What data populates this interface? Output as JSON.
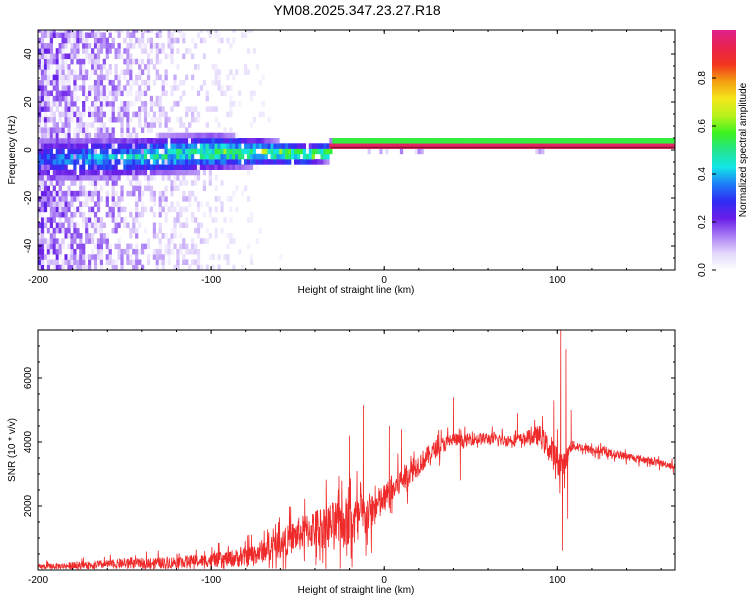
{
  "title": "YM08.2025.347.23.27.R18",
  "chart_data": [
    {
      "type": "heatmap",
      "name": "spectrogram",
      "xlabel": "Height of straight line (km)",
      "ylabel": "Frequency (Hz)",
      "xlim": [
        -200,
        168
      ],
      "ylim": [
        -50,
        50
      ],
      "xticks": [
        -200,
        -100,
        0,
        100
      ],
      "yticks": [
        -40,
        -20,
        0,
        20,
        40
      ],
      "colorbar": {
        "label": "Normalized spectral amplitude",
        "range": [
          0,
          1
        ],
        "ticks": [
          0.0,
          0.2,
          0.4,
          0.6,
          0.8
        ],
        "colors": [
          "#ffffff",
          "#e3d6fb",
          "#a97cf4",
          "#6a1ee8",
          "#2f2cf4",
          "#1f7cf8",
          "#13e6e8",
          "#22e58a",
          "#3cf21f",
          "#b8f21a",
          "#f4e61a",
          "#f49f12",
          "#f2331e",
          "#e8234f",
          "#e0208d"
        ]
      },
      "signal_band": {
        "freq_center": [
          [
            -200,
            -5
          ],
          [
            -150,
            -4
          ],
          [
            -100,
            -2
          ],
          [
            -70,
            -2
          ],
          [
            -45,
            -3
          ],
          [
            -33,
            -2
          ],
          [
            -31,
            1
          ],
          [
            0,
            1
          ],
          [
            50,
            1
          ],
          [
            168,
            1
          ]
        ],
        "half_width": [
          [
            -200,
            9
          ],
          [
            -100,
            8
          ],
          [
            -60,
            5
          ],
          [
            -33,
            4
          ],
          [
            -31,
            2
          ],
          [
            168,
            2
          ]
        ]
      }
    },
    {
      "type": "line",
      "name": "snr",
      "color": "#ee2a2a",
      "xlabel": "Height of straight line (km)",
      "ylabel": "SNR (10 * v/v)",
      "xlim": [
        -200,
        168
      ],
      "ylim": [
        0,
        7500
      ],
      "xticks": [
        -200,
        -100,
        0,
        100
      ],
      "yticks": [
        2000,
        4000,
        6000
      ],
      "series": [
        {
          "name": "SNR",
          "envelope_x": [
            -200,
            -170,
            -150,
            -120,
            -100,
            -80,
            -70,
            -60,
            -50,
            -40,
            -30,
            -20,
            -10,
            0,
            10,
            20,
            30,
            40,
            45,
            50,
            60,
            70,
            80,
            90,
            100,
            104,
            108,
            120,
            140,
            168
          ],
          "envelope_y": [
            100,
            150,
            200,
            250,
            300,
            400,
            600,
            800,
            1100,
            1300,
            1400,
            1500,
            1700,
            2200,
            2800,
            3300,
            3800,
            4100,
            4000,
            4100,
            4100,
            4050,
            4100,
            4200,
            3400,
            3300,
            3900,
            3750,
            3550,
            3250
          ],
          "noise_x": [
            -200,
            -100,
            -60,
            -20,
            0,
            20,
            40,
            80,
            100,
            110,
            168
          ],
          "noise_amp": [
            120,
            300,
            600,
            1200,
            700,
            500,
            300,
            250,
            700,
            200,
            150
          ],
          "spikes": [
            {
              "x": -12,
              "y": 5150
            },
            {
              "x": -20,
              "y": 4200
            },
            {
              "x": 3,
              "y": 4500
            },
            {
              "x": 10,
              "y": 4400
            },
            {
              "x": 40,
              "y": 5400
            },
            {
              "x": 44,
              "y": 2800
            },
            {
              "x": 77,
              "y": 4900
            },
            {
              "x": 98,
              "y": 5300
            },
            {
              "x": 102,
              "y": 7500
            },
            {
              "x": 103,
              "y": 600
            },
            {
              "x": 105,
              "y": 6900
            },
            {
              "x": 106,
              "y": 1600
            },
            {
              "x": 108,
              "y": 5000
            }
          ]
        }
      ]
    }
  ]
}
